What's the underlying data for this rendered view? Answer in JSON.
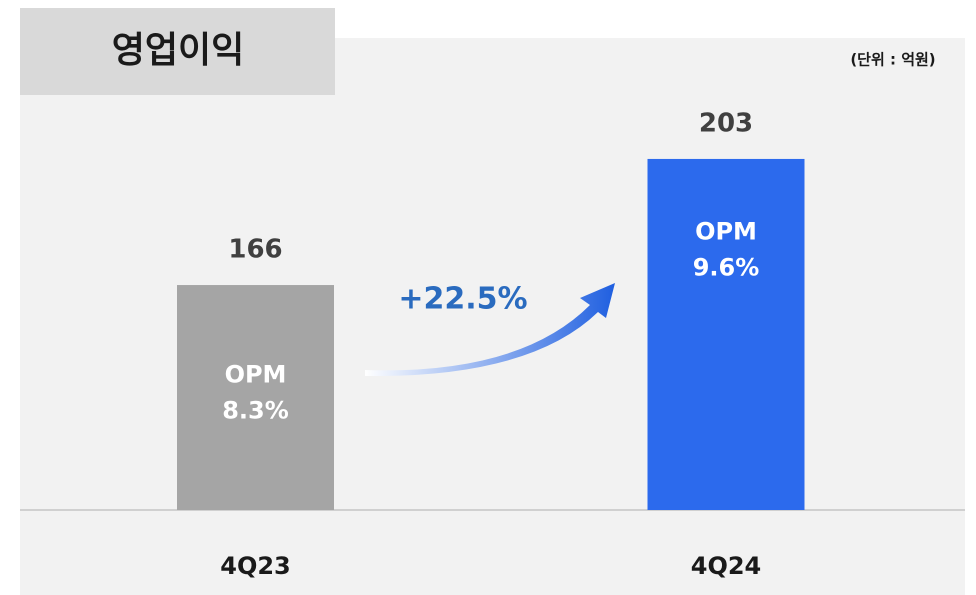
{
  "chart_data": {
    "type": "bar",
    "title": "영업이익",
    "unit": "(단위 : 억원)",
    "categories": [
      "4Q23",
      "4Q24"
    ],
    "values": [
      166,
      203
    ],
    "colors": [
      "#a5a5a5",
      "#2c6aed"
    ],
    "inner_label": "OPM",
    "opm_values": [
      8.3,
      9.6
    ],
    "opm_value_labels": [
      "8.3%",
      "9.6%"
    ],
    "growth": "+22.5%",
    "ylim": [
      100,
      220
    ]
  }
}
